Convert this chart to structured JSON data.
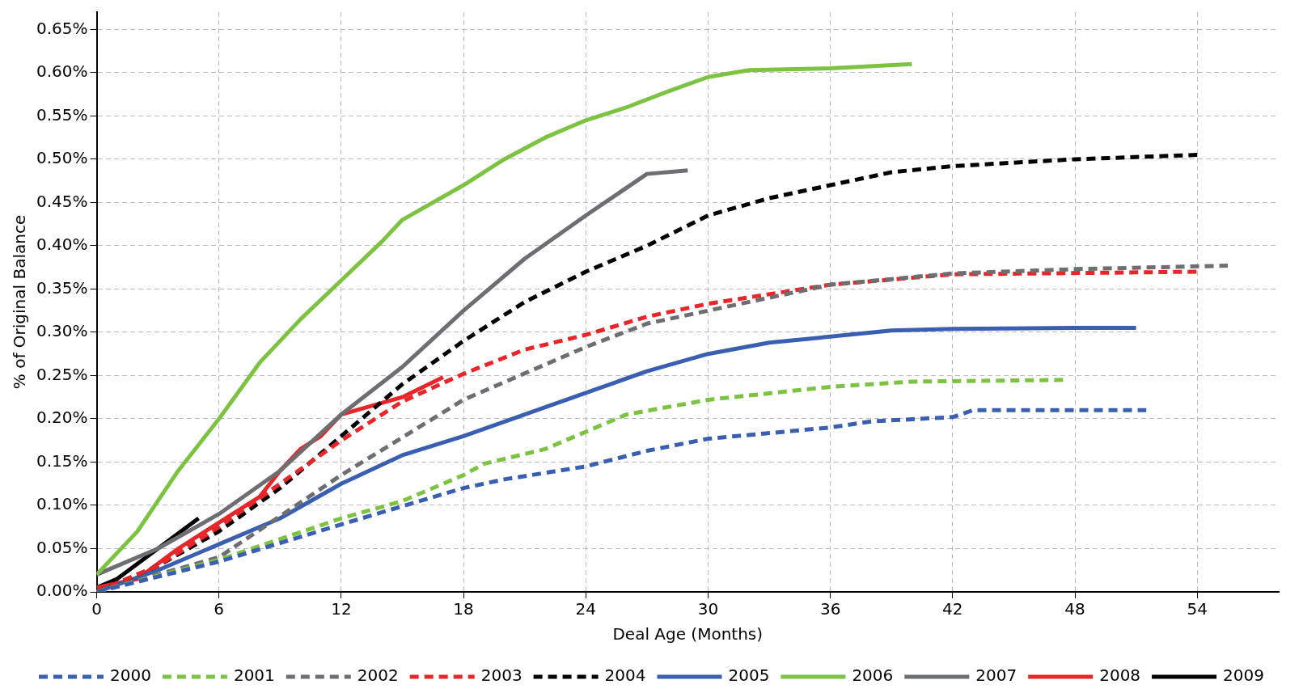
{
  "chart_data": {
    "type": "line",
    "xlabel": "Deal Age (Months)",
    "ylabel": "% of Original Balance",
    "xlim": [
      0,
      58
    ],
    "xticks": [
      0,
      6,
      12,
      18,
      24,
      30,
      36,
      42,
      48,
      54
    ],
    "ylim": [
      0,
      0.67
    ],
    "yticks": [
      {
        "value": 0,
        "label": "0.00%"
      },
      {
        "value": 0.05,
        "label": "0.05%"
      },
      {
        "value": 0.1,
        "label": "0.10%"
      },
      {
        "value": 0.15,
        "label": "0.15%"
      },
      {
        "value": 0.2,
        "label": "0.20%"
      },
      {
        "value": 0.25,
        "label": "0.25%"
      },
      {
        "value": 0.3,
        "label": "0.30%"
      },
      {
        "value": 0.35,
        "label": "0.35%"
      },
      {
        "value": 0.4,
        "label": "0.40%"
      },
      {
        "value": 0.45,
        "label": "0.45%"
      },
      {
        "value": 0.5,
        "label": "0.50%"
      },
      {
        "value": 0.55,
        "label": "0.55%"
      },
      {
        "value": 0.6,
        "label": "0.60%"
      },
      {
        "value": 0.65,
        "label": "0.65%"
      }
    ],
    "grid": true,
    "legend": "bottom",
    "marker": "none",
    "series": [
      {
        "name": "2000",
        "color": "#3a5fb0",
        "line_style": "dashed",
        "x": [
          0,
          6,
          12,
          18,
          20,
          24,
          27,
          30,
          36,
          38,
          42,
          43,
          48,
          51.5
        ],
        "values": [
          0,
          0.035,
          0.078,
          0.12,
          0.13,
          0.145,
          0.163,
          0.177,
          0.19,
          0.197,
          0.202,
          0.21,
          0.21,
          0.21
        ]
      },
      {
        "name": "2001",
        "color": "#7dc242",
        "line_style": "dashed",
        "x": [
          0,
          6,
          12,
          15,
          18,
          19,
          22,
          24,
          26,
          30,
          36,
          40,
          47.5
        ],
        "values": [
          0,
          0.037,
          0.085,
          0.105,
          0.135,
          0.148,
          0.165,
          0.185,
          0.205,
          0.222,
          0.237,
          0.243,
          0.245
        ]
      },
      {
        "name": "2002",
        "color": "#6d6e71",
        "line_style": "dashed",
        "x": [
          0,
          6,
          12,
          18,
          24,
          27,
          30,
          36,
          42,
          48,
          55.5
        ],
        "values": [
          0,
          0.04,
          0.135,
          0.222,
          0.283,
          0.31,
          0.325,
          0.355,
          0.368,
          0.373,
          0.377
        ]
      },
      {
        "name": "2003",
        "color": "#e8262a",
        "line_style": "dashed",
        "x": [
          0,
          3,
          6,
          9,
          12,
          15,
          18,
          21,
          24,
          27,
          30,
          36,
          42,
          54
        ],
        "values": [
          0,
          0.03,
          0.075,
          0.125,
          0.175,
          0.22,
          0.252,
          0.28,
          0.297,
          0.318,
          0.333,
          0.355,
          0.367,
          0.37
        ]
      },
      {
        "name": "2004",
        "color": "#000000",
        "line_style": "dashed",
        "x": [
          0,
          3,
          6,
          9,
          12,
          15,
          18,
          21,
          24,
          27,
          30,
          33,
          36,
          39,
          42,
          48,
          54
        ],
        "values": [
          0,
          0.03,
          0.07,
          0.12,
          0.18,
          0.24,
          0.29,
          0.335,
          0.37,
          0.4,
          0.435,
          0.455,
          0.47,
          0.485,
          0.492,
          0.5,
          0.505
        ]
      },
      {
        "name": "2005",
        "color": "#3a5fb0",
        "line_style": "solid",
        "x": [
          0,
          3,
          6,
          9,
          12,
          15,
          18,
          21,
          24,
          27,
          30,
          33,
          36,
          39,
          42,
          48,
          51
        ],
        "values": [
          0,
          0.025,
          0.055,
          0.085,
          0.125,
          0.158,
          0.18,
          0.205,
          0.23,
          0.255,
          0.275,
          0.288,
          0.295,
          0.302,
          0.304,
          0.305,
          0.305
        ]
      },
      {
        "name": "2006",
        "color": "#7dc242",
        "line_style": "solid",
        "x": [
          0,
          2,
          4,
          6,
          8,
          10,
          12,
          14,
          15,
          18,
          20,
          22,
          24,
          26,
          28,
          30,
          32,
          36,
          40
        ],
        "values": [
          0.02,
          0.07,
          0.14,
          0.2,
          0.265,
          0.315,
          0.36,
          0.405,
          0.43,
          0.47,
          0.5,
          0.525,
          0.545,
          0.56,
          0.578,
          0.595,
          0.603,
          0.605,
          0.61
        ]
      },
      {
        "name": "2007",
        "color": "#6d6e71",
        "line_style": "solid",
        "x": [
          0,
          3,
          6,
          9,
          12,
          15,
          18,
          21,
          24,
          27,
          29
        ],
        "values": [
          0.02,
          0.05,
          0.09,
          0.14,
          0.205,
          0.26,
          0.325,
          0.385,
          0.435,
          0.483,
          0.487
        ]
      },
      {
        "name": "2008",
        "color": "#e8262a",
        "line_style": "solid",
        "x": [
          0,
          2,
          4,
          6,
          8,
          9,
          10,
          11,
          12,
          15,
          17
        ],
        "values": [
          0.005,
          0.015,
          0.05,
          0.08,
          0.11,
          0.14,
          0.165,
          0.18,
          0.205,
          0.225,
          0.248
        ]
      },
      {
        "name": "2009",
        "color": "#000000",
        "line_style": "solid",
        "x": [
          0,
          1,
          3,
          5
        ],
        "values": [
          0.005,
          0.015,
          0.05,
          0.085
        ]
      }
    ]
  }
}
